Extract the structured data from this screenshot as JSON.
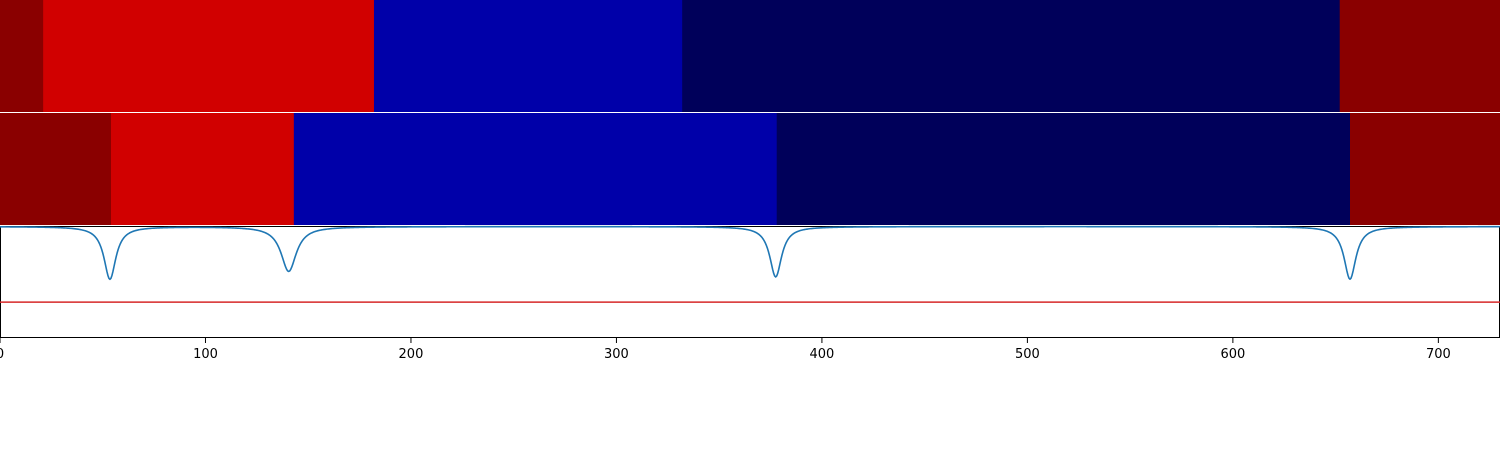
{
  "chart_data": [
    {
      "type": "heatmap",
      "colormap": "seismic",
      "xlim": [
        0,
        730
      ],
      "segments": [
        {
          "start": 0,
          "end": 21,
          "value": 0.98
        },
        {
          "start": 21,
          "end": 182,
          "value": 0.84
        },
        {
          "start": 182,
          "end": 332,
          "value": 0.13
        },
        {
          "start": 332,
          "end": 652,
          "value": 0.02
        },
        {
          "start": 652,
          "end": 730,
          "value": 0.98
        }
      ]
    },
    {
      "type": "heatmap",
      "colormap": "seismic",
      "xlim": [
        0,
        730
      ],
      "segments": [
        {
          "start": 0,
          "end": 54,
          "value": 0.98
        },
        {
          "start": 54,
          "end": 143,
          "value": 0.84
        },
        {
          "start": 143,
          "end": 378,
          "value": 0.13
        },
        {
          "start": 378,
          "end": 657,
          "value": 0.02
        },
        {
          "start": 657,
          "end": 730,
          "value": 0.98
        }
      ]
    },
    {
      "type": "line",
      "xlim": [
        0,
        730
      ],
      "ylim": [
        0,
        1
      ],
      "grid": false,
      "baseline": 0.995,
      "dips": [
        {
          "x": 53.5,
          "depth": 0.47,
          "width": 3.5
        },
        {
          "x": 140.5,
          "depth": 0.4,
          "width": 4.5
        },
        {
          "x": 377.5,
          "depth": 0.45,
          "width": 3.5
        },
        {
          "x": 657,
          "depth": 0.47,
          "width": 3.5
        }
      ],
      "threshold": 0.32,
      "line_color": "#1f77b4",
      "threshold_color": "#d62728",
      "xticks": [
        0,
        100,
        200,
        300,
        400,
        500,
        600,
        700
      ],
      "xtick_labels": [
        "0",
        "100",
        "200",
        "300",
        "400",
        "500",
        "600",
        "700"
      ]
    }
  ]
}
